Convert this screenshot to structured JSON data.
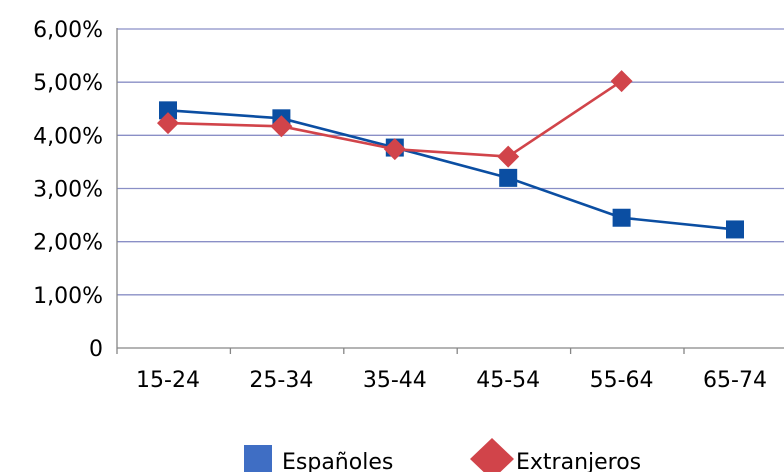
{
  "chart_data": {
    "type": "line",
    "categories": [
      "15-24",
      "25-34",
      "35-44",
      "45-54",
      "55-64",
      "65-74"
    ],
    "y_tick_labels": [
      "0",
      "1,00%",
      "2,00%",
      "3,00%",
      "4,00%",
      "5,00%",
      "6,00%"
    ],
    "ylim": [
      0,
      6
    ],
    "grid": true,
    "legend_position": "bottom",
    "series": [
      {
        "name": "Españoles",
        "values": [
          4.47,
          4.32,
          3.77,
          3.2,
          2.45,
          2.23
        ],
        "color": "#0b4ea2",
        "marker": "square"
      },
      {
        "name": "Extranjeros",
        "values": [
          4.23,
          4.17,
          3.74,
          3.6,
          5.02,
          null
        ],
        "color": "#d1444a",
        "marker": "diamond"
      }
    ],
    "colors": {
      "axis": "#868686",
      "grid": "#8a8fc6",
      "legend_swatch_1": "#3f6ec4",
      "legend_swatch_2": "#d1444a"
    }
  }
}
